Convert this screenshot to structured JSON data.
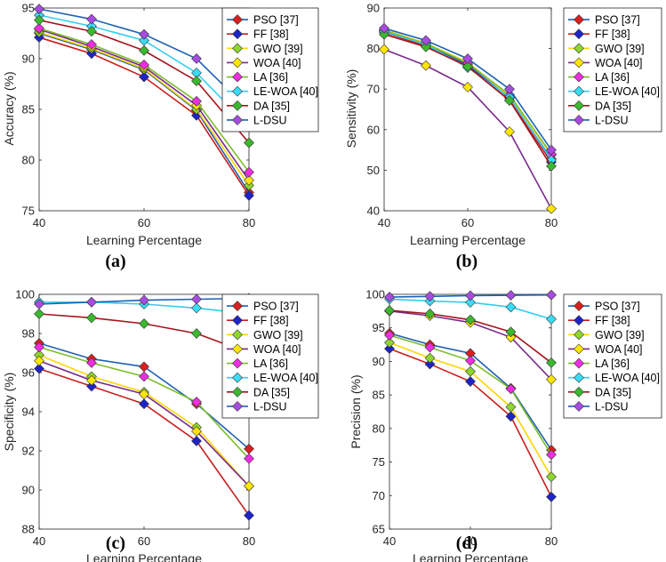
{
  "chart_data": [
    {
      "type": "line",
      "panel_label": "(a)",
      "xlabel": "Learning Percentage",
      "ylabel": "Accuracy (%)",
      "x": [
        40,
        50,
        60,
        70,
        80
      ],
      "xlim": [
        40,
        80
      ],
      "ylim": [
        75,
        95
      ],
      "xticks": [
        "40",
        "60",
        "80"
      ],
      "yticks": [
        "75",
        "80",
        "85",
        "90",
        "95"
      ],
      "legend_position": "right",
      "series": [
        {
          "name": "PSO [37]",
          "values": [
            92.5,
            90.9,
            88.9,
            84.9,
            76.8
          ]
        },
        {
          "name": "FF [38]",
          "values": [
            92.1,
            90.5,
            88.2,
            84.4,
            76.5
          ]
        },
        {
          "name": "GWO [39]",
          "values": [
            92.6,
            91.0,
            89.0,
            85.0,
            77.5
          ]
        },
        {
          "name": "WOA [40]",
          "values": [
            92.9,
            91.2,
            89.2,
            85.4,
            78.0
          ]
        },
        {
          "name": "LA [36]",
          "values": [
            93.0,
            91.4,
            89.4,
            85.8,
            78.8
          ]
        },
        {
          "name": "LE-WOA [40]",
          "values": [
            94.3,
            93.2,
            91.8,
            88.6,
            83.3
          ]
        },
        {
          "name": "DA [35]",
          "values": [
            93.8,
            92.7,
            90.8,
            87.8,
            81.7
          ]
        },
        {
          "name": "L-DSU",
          "values": [
            94.9,
            93.9,
            92.4,
            90.0,
            84.9
          ]
        }
      ]
    },
    {
      "type": "line",
      "panel_label": "(b)",
      "xlabel": "Learning Percentage",
      "ylabel": "Sensitivity (%)",
      "x": [
        40,
        50,
        60,
        70,
        80
      ],
      "xlim": [
        40,
        80
      ],
      "ylim": [
        40,
        90
      ],
      "xticks": [
        "40",
        "60",
        "80"
      ],
      "yticks": [
        "40",
        "50",
        "60",
        "70",
        "80",
        "90"
      ],
      "legend_position": "right",
      "series": [
        {
          "name": "PSO [37]",
          "values": [
            84.3,
            81.0,
            76.0,
            67.8,
            52.8
          ]
        },
        {
          "name": "FF [38]",
          "values": [
            84.0,
            80.6,
            75.6,
            67.2,
            52.0
          ]
        },
        {
          "name": "GWO [39]",
          "values": [
            84.6,
            81.3,
            76.6,
            68.3,
            53.8
          ]
        },
        {
          "name": "WOA [40]",
          "values": [
            79.8,
            75.8,
            70.5,
            59.5,
            40.5
          ]
        },
        {
          "name": "LA [36]",
          "values": [
            84.5,
            81.2,
            76.4,
            68.6,
            54.0
          ]
        },
        {
          "name": "LE-WOA [40]",
          "values": [
            84.1,
            81.0,
            75.3,
            68.0,
            52.5
          ]
        },
        {
          "name": "DA [35]",
          "values": [
            83.5,
            80.4,
            75.6,
            67.2,
            51.0
          ]
        },
        {
          "name": "L-DSU",
          "values": [
            85.0,
            82.0,
            77.5,
            70.0,
            55.0
          ]
        }
      ]
    },
    {
      "type": "line",
      "panel_label": "(c)",
      "xlabel": "Learning Percentage",
      "ylabel": "Specificity (%)",
      "x": [
        40,
        50,
        60,
        70,
        80
      ],
      "xlim": [
        40,
        80
      ],
      "ylim": [
        88,
        100
      ],
      "xticks": [
        "40",
        "60",
        "80"
      ],
      "yticks": [
        "88",
        "90",
        "92",
        "94",
        "96",
        "98",
        "100"
      ],
      "legend_position": "right",
      "series": [
        {
          "name": "PSO [37]",
          "values": [
            97.5,
            96.7,
            96.3,
            94.4,
            92.1
          ]
        },
        {
          "name": "FF [38]",
          "values": [
            96.2,
            95.3,
            94.4,
            92.5,
            88.7
          ]
        },
        {
          "name": "GWO [39]",
          "values": [
            96.9,
            95.8,
            95.0,
            93.2,
            90.2
          ]
        },
        {
          "name": "WOA [40]",
          "values": [
            96.6,
            95.6,
            94.9,
            93.0,
            90.2
          ]
        },
        {
          "name": "LA [36]",
          "values": [
            97.3,
            96.5,
            95.8,
            94.5,
            91.6
          ]
        },
        {
          "name": "LE-WOA [40]",
          "values": [
            99.6,
            99.6,
            99.5,
            99.3,
            99.0
          ]
        },
        {
          "name": "DA [35]",
          "values": [
            99.0,
            98.8,
            98.5,
            98.0,
            97.0
          ]
        },
        {
          "name": "L-DSU",
          "values": [
            99.5,
            99.6,
            99.7,
            99.75,
            99.8
          ]
        }
      ]
    },
    {
      "type": "line",
      "panel_label": "(d)",
      "xlabel": "Learning Percentage",
      "ylabel": "Precision (%)",
      "x": [
        40,
        50,
        60,
        70,
        80
      ],
      "xlim": [
        40,
        80
      ],
      "ylim": [
        65,
        100
      ],
      "xticks": [
        "40",
        "60",
        "80"
      ],
      "yticks": [
        "65",
        "70",
        "75",
        "80",
        "85",
        "90",
        "95",
        "100"
      ],
      "legend_position": "right",
      "series": [
        {
          "name": "PSO [37]",
          "values": [
            94.2,
            92.5,
            91.2,
            86.0,
            76.8
          ]
        },
        {
          "name": "FF [38]",
          "values": [
            91.9,
            89.6,
            87.0,
            81.8,
            69.8
          ]
        },
        {
          "name": "GWO [39]",
          "values": [
            92.8,
            90.5,
            88.5,
            83.2,
            72.8
          ]
        },
        {
          "name": "WOA [40]",
          "values": [
            97.5,
            96.8,
            95.8,
            93.6,
            87.3
          ]
        },
        {
          "name": "LA [36]",
          "values": [
            93.9,
            92.1,
            90.1,
            85.9,
            76.1
          ]
        },
        {
          "name": "LE-WOA [40]",
          "values": [
            99.3,
            99.0,
            98.8,
            98.1,
            96.3
          ]
        },
        {
          "name": "DA [35]",
          "values": [
            97.6,
            97.1,
            96.2,
            94.4,
            89.8
          ]
        },
        {
          "name": "L-DSU",
          "values": [
            99.6,
            99.7,
            99.8,
            99.85,
            99.9
          ]
        }
      ]
    }
  ],
  "series_colors": {
    "PSO [37]": {
      "line": "#1f5fb0",
      "marker": "#d92020"
    },
    "FF [38]": {
      "line": "#c81e1e",
      "marker": "#1e24c8"
    },
    "GWO [39]": {
      "line": "#ffd500",
      "marker": "#8ed62f"
    },
    "WOA [40]": {
      "line": "#7a2a8c",
      "marker": "#ffe600"
    },
    "LA [36]": {
      "line": "#7cbd2c",
      "marker": "#ee2ee0"
    },
    "LE-WOA [40]": {
      "line": "#33ccf2",
      "marker": "#38dcf8"
    },
    "DA [35]": {
      "line": "#a4141c",
      "marker": "#3bb82e"
    },
    "L-DSU": {
      "line": "#1c62b4",
      "marker": "#a74ce0"
    }
  }
}
